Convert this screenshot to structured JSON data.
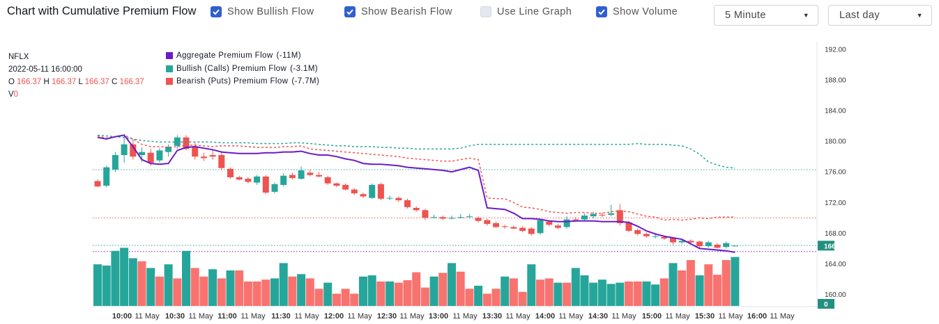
{
  "header": {
    "title": "Chart with Cumulative Premium Flow",
    "checkboxes": [
      {
        "label": "Show Bullish Flow",
        "checked": true
      },
      {
        "label": "Show Bearish Flow",
        "checked": true
      },
      {
        "label": "Use Line Graph",
        "checked": false
      },
      {
        "label": "Show Volume",
        "checked": true
      }
    ],
    "interval": "5 Minute",
    "range": "Last day"
  },
  "info": {
    "symbol": "NFLX",
    "datetime": "2022-05-11 16:00:00",
    "o_label": "O",
    "o": "166.37",
    "h_label": "H",
    "h": "166.37",
    "l_label": "L",
    "l": "166.37",
    "c_label": "C",
    "c": "166.37",
    "v_label": "V",
    "v": "0"
  },
  "colors": {
    "up": "#26a69a",
    "down": "#ef5350",
    "aggregate": "#6a1bc9",
    "accent": "#2f5fd0"
  },
  "chart_data": {
    "type": "candlestick",
    "legend": [
      {
        "label": "Aggregate Premium Flow",
        "value": "(-11M)",
        "color": "#6a1bc9"
      },
      {
        "label": "Bullish (Calls) Premium Flow",
        "value": "(-3.1M)",
        "color": "#26a69a"
      },
      {
        "label": "Bearish (Puts) Premium Flow",
        "value": "(-7.7M)",
        "color": "#ef5350"
      }
    ],
    "ylim": [
      158.5,
      193
    ],
    "y_ticks": [
      160,
      164,
      168,
      172,
      176,
      180,
      184,
      188,
      192
    ],
    "y_tick_labels": [
      "160.00",
      "164.00",
      "168.00",
      "172.00",
      "176.00",
      "180.00",
      "184.00",
      "188.00",
      "192.00"
    ],
    "x_tick_labels": [
      "10:00",
      "11 May",
      "10:30",
      "11 May",
      "11:00",
      "11 May",
      "11:30",
      "11 May",
      "12:00",
      "11 May",
      "12:30",
      "11 May",
      "13:00",
      "11 May",
      "13:30",
      "11 May",
      "14:00",
      "11 May",
      "14:30",
      "11 May",
      "15:00",
      "11 May",
      "15:30",
      "11 May",
      "16:00",
      "11 May"
    ],
    "last_price_label": "166.37",
    "volume_last_label": "0",
    "price_lines": [
      176.3,
      170.0,
      166.4,
      165.6
    ],
    "candles": [
      {
        "o": 174.8,
        "c": 174.1,
        "h": 175.0,
        "l": 174.0
      },
      {
        "o": 174.2,
        "c": 176.6,
        "h": 176.8,
        "l": 174.0
      },
      {
        "o": 176.3,
        "c": 178.2,
        "h": 178.6,
        "l": 176.0
      },
      {
        "o": 178.2,
        "c": 179.6,
        "h": 180.8,
        "l": 177.2
      },
      {
        "o": 179.6,
        "c": 178.0,
        "h": 180.2,
        "l": 177.6
      },
      {
        "o": 178.2,
        "c": 178.6,
        "h": 179.2,
        "l": 177.3
      },
      {
        "o": 178.5,
        "c": 177.2,
        "h": 179.0,
        "l": 176.8
      },
      {
        "o": 177.5,
        "c": 178.8,
        "h": 179.1,
        "l": 177.2
      },
      {
        "o": 178.6,
        "c": 179.3,
        "h": 179.6,
        "l": 178.0
      },
      {
        "o": 179.4,
        "c": 180.5,
        "h": 180.8,
        "l": 179.0
      },
      {
        "o": 180.5,
        "c": 179.0,
        "h": 180.8,
        "l": 178.8
      },
      {
        "o": 179.2,
        "c": 178.0,
        "h": 179.8,
        "l": 177.6
      },
      {
        "o": 178.0,
        "c": 177.8,
        "h": 178.5,
        "l": 177.4
      },
      {
        "o": 178.2,
        "c": 178.0,
        "h": 178.8,
        "l": 177.6
      },
      {
        "o": 178.2,
        "c": 176.5,
        "h": 178.6,
        "l": 176.2
      },
      {
        "o": 176.4,
        "c": 175.3,
        "h": 176.6,
        "l": 175.1
      },
      {
        "o": 175.3,
        "c": 175.0,
        "h": 175.5,
        "l": 174.9
      },
      {
        "o": 175.1,
        "c": 174.7,
        "h": 175.3,
        "l": 174.5
      },
      {
        "o": 174.6,
        "c": 175.4,
        "h": 175.6,
        "l": 174.3
      },
      {
        "o": 175.4,
        "c": 173.3,
        "h": 175.6,
        "l": 173.1
      },
      {
        "o": 173.4,
        "c": 174.4,
        "h": 174.6,
        "l": 173.2
      },
      {
        "o": 174.3,
        "c": 175.5,
        "h": 175.8,
        "l": 174.1
      },
      {
        "o": 175.6,
        "c": 175.2,
        "h": 175.9,
        "l": 175.0
      },
      {
        "o": 175.1,
        "c": 176.2,
        "h": 176.7,
        "l": 175.0
      },
      {
        "o": 175.9,
        "c": 175.6,
        "h": 176.3,
        "l": 175.4
      },
      {
        "o": 175.6,
        "c": 175.4,
        "h": 176.0,
        "l": 175.3
      },
      {
        "o": 175.3,
        "c": 174.5,
        "h": 175.5,
        "l": 174.3
      },
      {
        "o": 174.5,
        "c": 174.2,
        "h": 174.6,
        "l": 174.0
      },
      {
        "o": 174.3,
        "c": 173.7,
        "h": 174.5,
        "l": 173.6
      },
      {
        "o": 173.7,
        "c": 173.2,
        "h": 173.9,
        "l": 173.0
      },
      {
        "o": 173.1,
        "c": 172.8,
        "h": 173.3,
        "l": 172.6
      },
      {
        "o": 172.6,
        "c": 174.3,
        "h": 174.5,
        "l": 172.5
      },
      {
        "o": 174.4,
        "c": 172.5,
        "h": 174.6,
        "l": 172.3
      },
      {
        "o": 172.6,
        "c": 172.6,
        "h": 172.9,
        "l": 172.3
      },
      {
        "o": 172.6,
        "c": 172.3,
        "h": 172.8,
        "l": 172.1
      },
      {
        "o": 172.3,
        "c": 171.4,
        "h": 172.5,
        "l": 171.2
      },
      {
        "o": 171.3,
        "c": 171.0,
        "h": 171.5,
        "l": 170.8
      },
      {
        "o": 171.0,
        "c": 170.0,
        "h": 171.2,
        "l": 169.7
      },
      {
        "o": 170.1,
        "c": 170.1,
        "h": 170.4,
        "l": 169.9
      },
      {
        "o": 170.1,
        "c": 169.9,
        "h": 170.3,
        "l": 169.7
      },
      {
        "o": 169.9,
        "c": 170.0,
        "h": 170.3,
        "l": 169.8
      },
      {
        "o": 170.0,
        "c": 170.1,
        "h": 170.5,
        "l": 169.9
      },
      {
        "o": 170.1,
        "c": 170.2,
        "h": 170.5,
        "l": 169.9
      },
      {
        "o": 170.0,
        "c": 169.6,
        "h": 170.2,
        "l": 169.4
      },
      {
        "o": 169.7,
        "c": 169.2,
        "h": 169.9,
        "l": 169.0
      },
      {
        "o": 169.3,
        "c": 168.8,
        "h": 169.5,
        "l": 168.7
      },
      {
        "o": 168.9,
        "c": 168.8,
        "h": 169.1,
        "l": 168.6
      },
      {
        "o": 168.8,
        "c": 168.6,
        "h": 169.0,
        "l": 168.5
      },
      {
        "o": 168.7,
        "c": 168.3,
        "h": 168.9,
        "l": 168.1
      },
      {
        "o": 168.6,
        "c": 167.9,
        "h": 168.8,
        "l": 167.7
      },
      {
        "o": 168.0,
        "c": 169.7,
        "h": 169.9,
        "l": 167.8
      },
      {
        "o": 169.5,
        "c": 169.1,
        "h": 169.7,
        "l": 168.9
      },
      {
        "o": 169.0,
        "c": 168.7,
        "h": 169.2,
        "l": 168.5
      },
      {
        "o": 168.8,
        "c": 169.8,
        "h": 170.2,
        "l": 168.6
      },
      {
        "o": 169.8,
        "c": 169.7,
        "h": 170.1,
        "l": 169.5
      },
      {
        "o": 169.8,
        "c": 170.3,
        "h": 170.6,
        "l": 169.6
      },
      {
        "o": 170.2,
        "c": 170.5,
        "h": 170.8,
        "l": 169.9
      },
      {
        "o": 170.4,
        "c": 170.3,
        "h": 170.7,
        "l": 170.1
      },
      {
        "o": 170.4,
        "c": 170.6,
        "h": 171.7,
        "l": 170.2
      },
      {
        "o": 171.0,
        "c": 169.3,
        "h": 171.8,
        "l": 169.0
      },
      {
        "o": 169.4,
        "c": 168.3,
        "h": 169.6,
        "l": 168.1
      },
      {
        "o": 168.4,
        "c": 167.9,
        "h": 168.6,
        "l": 167.7
      },
      {
        "o": 167.9,
        "c": 167.6,
        "h": 168.1,
        "l": 167.4
      },
      {
        "o": 167.6,
        "c": 167.6,
        "h": 167.9,
        "l": 167.3
      },
      {
        "o": 167.5,
        "c": 167.3,
        "h": 167.7,
        "l": 167.1
      },
      {
        "o": 167.4,
        "c": 166.8,
        "h": 167.5,
        "l": 166.5
      },
      {
        "o": 166.8,
        "c": 167.0,
        "h": 167.2,
        "l": 166.6
      },
      {
        "o": 167.0,
        "c": 166.8,
        "h": 167.2,
        "l": 166.6
      },
      {
        "o": 166.9,
        "c": 166.3,
        "h": 167.0,
        "l": 166.1
      },
      {
        "o": 166.3,
        "c": 166.8,
        "h": 167.0,
        "l": 166.1
      },
      {
        "o": 166.5,
        "c": 166.1,
        "h": 166.7,
        "l": 166.0
      },
      {
        "o": 166.2,
        "c": 166.7,
        "h": 166.9,
        "l": 166.0
      },
      {
        "o": 166.37,
        "c": 166.37,
        "h": 166.37,
        "l": 166.37
      }
    ],
    "volume_max": 100,
    "volumes": [
      68,
      66,
      90,
      95,
      78,
      73,
      62,
      48,
      68,
      45,
      90,
      62,
      48,
      60,
      45,
      58,
      58,
      40,
      40,
      43,
      45,
      70,
      48,
      52,
      45,
      28,
      38,
      20,
      28,
      20,
      48,
      50,
      40,
      40,
      38,
      42,
      55,
      30,
      48,
      54,
      70,
      56,
      28,
      33,
      20,
      28,
      48,
      45,
      23,
      68,
      43,
      45,
      38,
      38,
      62,
      50,
      38,
      43,
      36,
      38,
      40,
      40,
      40,
      35,
      45,
      70,
      58,
      75,
      50,
      68,
      51,
      75,
      80
    ],
    "volume_up": [
      true,
      true,
      true,
      true,
      true,
      false,
      true,
      false,
      true,
      false,
      true,
      false,
      false,
      true,
      false,
      true,
      false,
      false,
      false,
      false,
      true,
      true,
      false,
      true,
      false,
      false,
      true,
      false,
      false,
      false,
      true,
      true,
      false,
      true,
      false,
      false,
      false,
      false,
      true,
      false,
      true,
      false,
      false,
      true,
      false,
      false,
      true,
      false,
      false,
      true,
      false,
      false,
      true,
      false,
      true,
      true,
      true,
      true,
      true,
      true,
      false,
      false,
      true,
      true,
      false,
      true,
      false,
      false,
      true,
      false,
      false,
      false,
      true
    ],
    "aggregate_flow": [
      180.5,
      180.3,
      180.6,
      180.8,
      179.3,
      177.6,
      177.1,
      177.0,
      177.1,
      178.8,
      179.2,
      179.3,
      179.1,
      178.9,
      178.6,
      178.5,
      178.4,
      178.4,
      178.4,
      178.5,
      178.5,
      178.6,
      178.6,
      178.7,
      178.4,
      178.2,
      178.2,
      178.0,
      177.7,
      177.5,
      177.1,
      177.0,
      177.0,
      176.9,
      176.8,
      176.6,
      176.5,
      176.4,
      176.3,
      176.2,
      176.0,
      176.3,
      176.6,
      176.2,
      171.3,
      171.2,
      171.1,
      170.6,
      169.9,
      169.9,
      169.8,
      169.6,
      169.5,
      169.5,
      169.6,
      169.6,
      169.6,
      169.5,
      169.5,
      169.5,
      169.4,
      168.9,
      168.3,
      167.9,
      167.6,
      167.4,
      167.2,
      166.6,
      166.0,
      165.9,
      165.8,
      165.7,
      165.5
    ],
    "bullish_flow": [
      180.8,
      180.7,
      180.6,
      180.5,
      180.3,
      180.1,
      180.0,
      179.9,
      179.9,
      179.9,
      179.9,
      179.9,
      179.9,
      179.9,
      179.8,
      179.8,
      179.8,
      179.8,
      179.7,
      179.7,
      179.7,
      179.7,
      179.8,
      179.8,
      179.7,
      179.6,
      179.5,
      179.4,
      179.4,
      179.3,
      179.3,
      179.3,
      179.2,
      179.2,
      179.1,
      179.1,
      179.0,
      179.0,
      179.0,
      179.0,
      179.0,
      179.1,
      179.4,
      179.6,
      179.6,
      179.6,
      179.6,
      179.6,
      179.6,
      179.6,
      179.6,
      179.6,
      179.6,
      179.6,
      179.6,
      179.6,
      179.6,
      179.6,
      179.6,
      179.6,
      179.6,
      179.7,
      179.6,
      179.6,
      179.6,
      179.5,
      179.4,
      179.0,
      178.3,
      177.3,
      176.9,
      176.6,
      176.5
    ],
    "bearish_flow": [
      180.7,
      180.4,
      180.6,
      180.8,
      180.3,
      179.6,
      179.3,
      179.3,
      179.2,
      179.3,
      179.5,
      179.5,
      179.4,
      179.3,
      179.4,
      179.4,
      179.4,
      179.3,
      179.2,
      179.2,
      179.2,
      179.3,
      179.3,
      179.4,
      179.0,
      178.9,
      178.8,
      178.7,
      178.6,
      178.5,
      178.4,
      178.3,
      178.2,
      178.1,
      178.0,
      177.8,
      177.7,
      177.6,
      177.5,
      177.4,
      177.4,
      177.6,
      177.8,
      177.6,
      172.6,
      172.5,
      172.5,
      172.0,
      171.4,
      171.3,
      171.1,
      170.8,
      170.7,
      170.6,
      170.7,
      170.7,
      170.6,
      170.6,
      170.8,
      170.9,
      170.8,
      170.5,
      170.2,
      170.1,
      169.7,
      169.8,
      169.7,
      169.8,
      170.0,
      169.9,
      170.1,
      170.1,
      170.1
    ]
  }
}
